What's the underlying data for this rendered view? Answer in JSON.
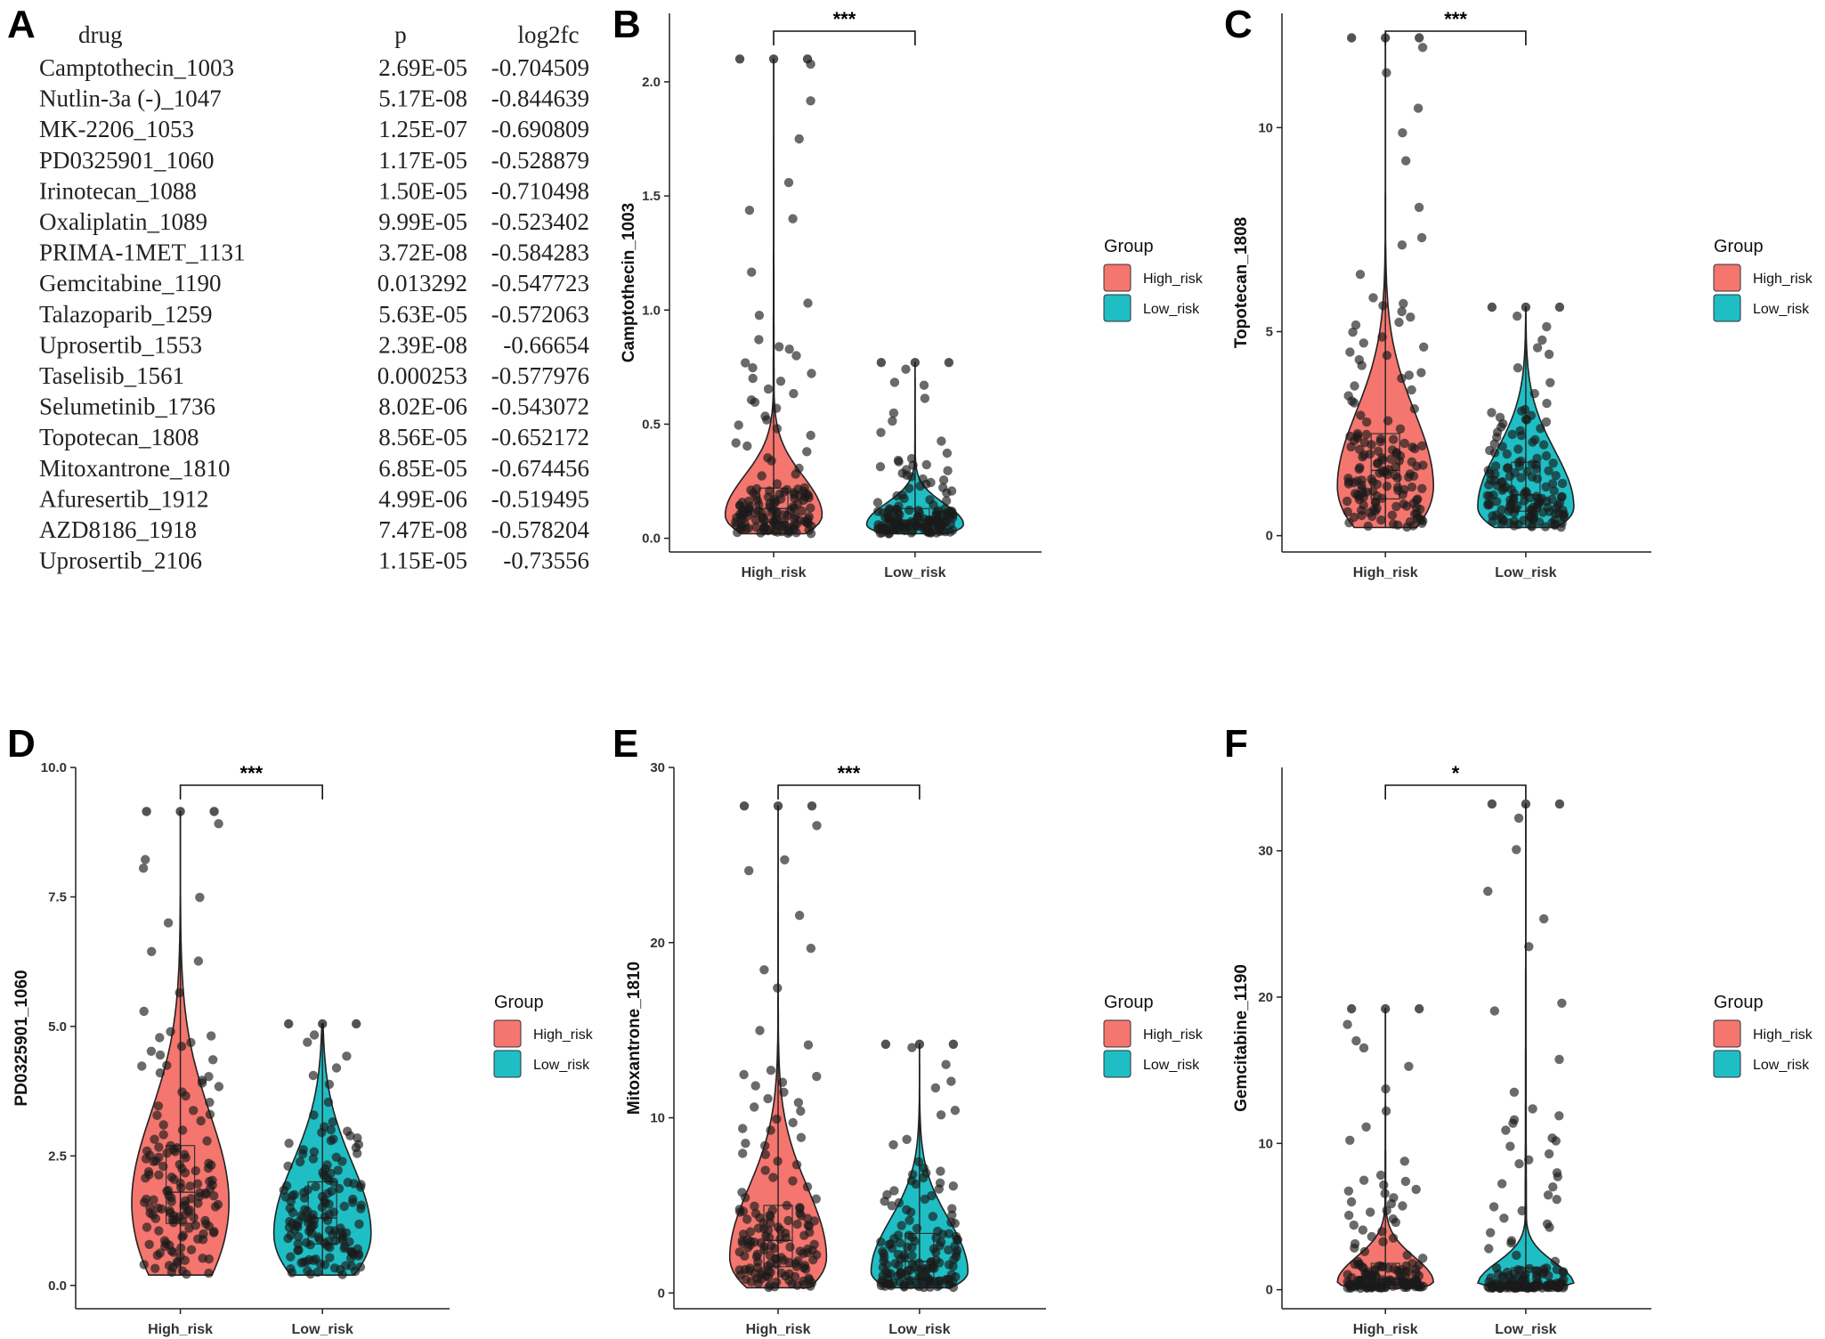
{
  "table": {
    "label": "A",
    "headers": [
      "drug",
      "p",
      "log2fc"
    ],
    "rows": [
      [
        "Camptothecin_1003",
        "2.69E-05",
        "-0.704509"
      ],
      [
        "Nutlin-3a (-)_1047",
        "5.17E-08",
        "-0.844639"
      ],
      [
        "MK-2206_1053",
        "1.25E-07",
        "-0.690809"
      ],
      [
        "PD0325901_1060",
        "1.17E-05",
        "-0.528879"
      ],
      [
        "Irinotecan_1088",
        "1.50E-05",
        "-0.710498"
      ],
      [
        "Oxaliplatin_1089",
        "9.99E-05",
        "-0.523402"
      ],
      [
        "PRIMA-1MET_1131",
        "3.72E-08",
        "-0.584283"
      ],
      [
        "Gemcitabine_1190",
        "0.013292",
        "-0.547723"
      ],
      [
        "Talazoparib_1259",
        "5.63E-05",
        "-0.572063"
      ],
      [
        "Uprosertib_1553",
        "2.39E-08",
        "-0.66654"
      ],
      [
        "Taselisib_1561",
        "0.000253",
        "-0.577976"
      ],
      [
        "Selumetinib_1736",
        "8.02E-06",
        "-0.543072"
      ],
      [
        "Topotecan_1808",
        "8.56E-05",
        "-0.652172"
      ],
      [
        "Mitoxantrone_1810",
        "6.85E-05",
        "-0.674456"
      ],
      [
        "Afuresertib_1912",
        "4.99E-06",
        "-0.519495"
      ],
      [
        "AZD8186_1918",
        "7.47E-08",
        "-0.578204"
      ],
      [
        "Uprosertib_2106",
        "1.15E-05",
        "-0.73556"
      ]
    ]
  },
  "colors": {
    "high_risk": "#F4766E",
    "low_risk": "#1FBEC4",
    "point": "#1a1a1a",
    "axis": "#222222"
  },
  "chart_data": [
    {
      "label": "B",
      "type": "violin",
      "ylabel": "Camptothecin_1003",
      "yticks": [
        0.0,
        0.5,
        1.0,
        1.5,
        2.0
      ],
      "ytick_labels": [
        "0.0",
        "0.5",
        "1.0",
        "1.5",
        "2.0"
      ],
      "ylim": [
        -0.06,
        2.3
      ],
      "categories": [
        "High_risk",
        "Low_risk"
      ],
      "significance": "***",
      "legend": {
        "title": "Group",
        "items": [
          "High_risk",
          "Low_risk"
        ],
        "position": "right"
      },
      "groups": [
        {
          "name": "High_risk",
          "min": 0.02,
          "q1": 0.07,
          "median": 0.13,
          "q3": 0.22,
          "max": 2.1,
          "mode": 0.1,
          "n": 150
        },
        {
          "name": "Low_risk",
          "min": 0.02,
          "q1": 0.05,
          "median": 0.08,
          "q3": 0.13,
          "max": 0.77,
          "mode": 0.06,
          "n": 150
        }
      ]
    },
    {
      "label": "C",
      "type": "violin",
      "ylabel": "Topotecan_1808",
      "yticks": [
        0,
        5,
        10
      ],
      "ytick_labels": [
        "0",
        "5",
        "10"
      ],
      "ylim": [
        -0.4,
        12.8
      ],
      "categories": [
        "High_risk",
        "Low_risk"
      ],
      "significance": "***",
      "legend": {
        "title": "Group",
        "items": [
          "High_risk",
          "Low_risk"
        ],
        "position": "right"
      },
      "groups": [
        {
          "name": "High_risk",
          "min": 0.2,
          "q1": 0.9,
          "median": 1.6,
          "q3": 2.5,
          "max": 12.2,
          "mode": 1.2,
          "n": 150
        },
        {
          "name": "Low_risk",
          "min": 0.2,
          "q1": 0.6,
          "median": 1.0,
          "q3": 1.8,
          "max": 5.6,
          "mode": 0.7,
          "n": 150
        }
      ]
    },
    {
      "label": "D",
      "type": "violin",
      "ylabel": "PD0325901_1060",
      "yticks": [
        0.0,
        2.5,
        5.0,
        7.5,
        10.0
      ],
      "ytick_labels": [
        "0.0",
        "2.5",
        "5.0",
        "7.5",
        "10.0"
      ],
      "ylim": [
        -0.45,
        10.0
      ],
      "categories": [
        "High_risk",
        "Low_risk"
      ],
      "significance": "***",
      "legend": {
        "title": "Group",
        "items": [
          "High_risk",
          "Low_risk"
        ],
        "position": "right"
      },
      "groups": [
        {
          "name": "High_risk",
          "min": 0.2,
          "q1": 1.2,
          "median": 1.8,
          "q3": 2.7,
          "max": 9.15,
          "mode": 1.6,
          "n": 150
        },
        {
          "name": "Low_risk",
          "min": 0.2,
          "q1": 0.8,
          "median": 1.3,
          "q3": 2.0,
          "max": 5.05,
          "mode": 1.0,
          "n": 150
        }
      ]
    },
    {
      "label": "E",
      "type": "violin",
      "ylabel": "Mitoxantrone_1810",
      "yticks": [
        0,
        10,
        20,
        30
      ],
      "ytick_labels": [
        "0",
        "10",
        "20",
        "30"
      ],
      "ylim": [
        -0.9,
        30.0
      ],
      "categories": [
        "High_risk",
        "Low_risk"
      ],
      "significance": "***",
      "legend": {
        "title": "Group",
        "items": [
          "High_risk",
          "Low_risk"
        ],
        "position": "right"
      },
      "groups": [
        {
          "name": "High_risk",
          "min": 0.3,
          "q1": 1.5,
          "median": 3.0,
          "q3": 5.0,
          "max": 27.8,
          "mode": 2.0,
          "n": 150
        },
        {
          "name": "Low_risk",
          "min": 0.3,
          "q1": 0.8,
          "median": 1.8,
          "q3": 3.4,
          "max": 14.2,
          "mode": 1.2,
          "n": 150
        }
      ]
    },
    {
      "label": "F",
      "type": "violin",
      "ylabel": "Gemcitabine_1190",
      "yticks": [
        0,
        10,
        20,
        30
      ],
      "ytick_labels": [
        "0",
        "10",
        "20",
        "30"
      ],
      "ylim": [
        -1.3,
        35.7
      ],
      "categories": [
        "High_risk",
        "Low_risk"
      ],
      "significance": "*",
      "legend": {
        "title": "Group",
        "items": [
          "High_risk",
          "Low_risk"
        ],
        "position": "right"
      },
      "groups": [
        {
          "name": "High_risk",
          "min": 0.1,
          "q1": 0.3,
          "median": 0.7,
          "q3": 1.8,
          "max": 19.2,
          "mode": 0.5,
          "n": 150
        },
        {
          "name": "Low_risk",
          "min": 0.1,
          "q1": 0.2,
          "median": 0.4,
          "q3": 1.5,
          "max": 33.2,
          "mode": 0.35,
          "n": 150
        }
      ]
    }
  ]
}
